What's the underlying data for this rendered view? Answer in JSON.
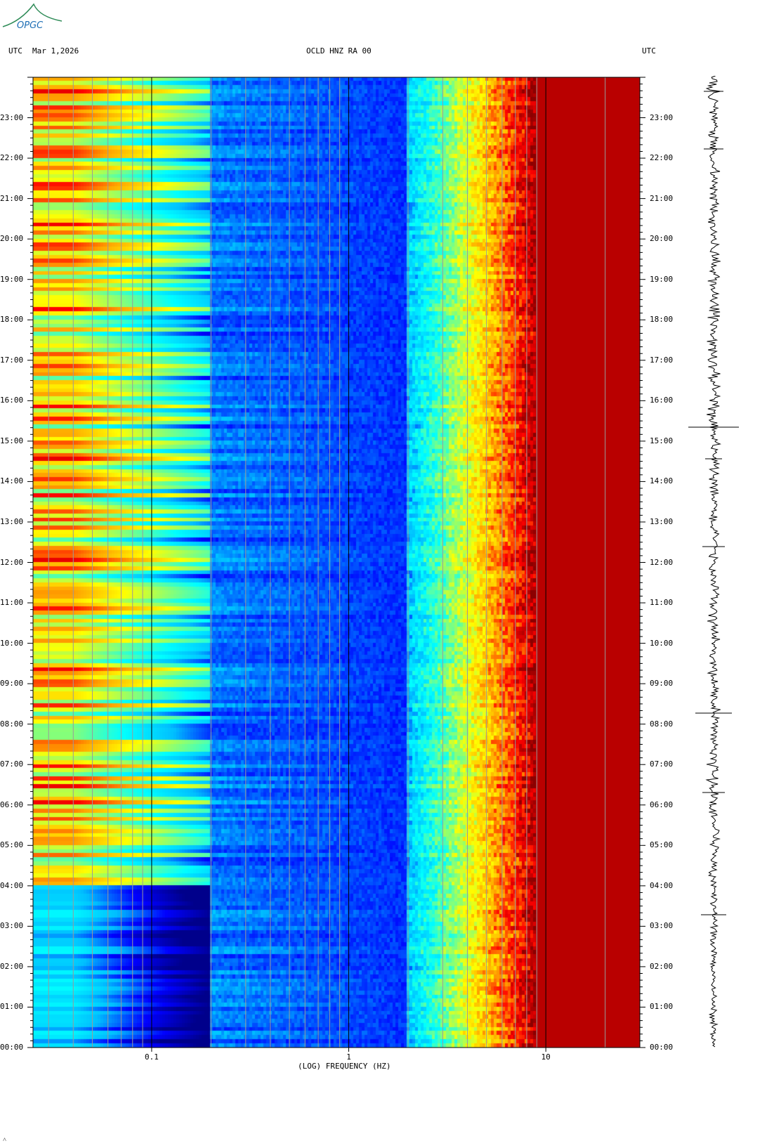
{
  "header": {
    "utc_left": "UTC",
    "date": "Mar 1,2026",
    "station": "OCLD HNZ RA 00",
    "utc_right": "UTC"
  },
  "logo": {
    "text": "OPGC",
    "icon": "opgc-logo"
  },
  "footer_mark": "˄",
  "colors": {
    "dark_blue": "#00008b",
    "blue": "#0000ff",
    "cyan": "#00ffff",
    "yellow": "#ffff00",
    "red": "#ff0000",
    "dark_red": "#8b0000"
  },
  "chart_data": {
    "type": "heatmap",
    "title": "OCLD HNZ RA 00",
    "xlabel": "(LOG) FREQUENCY (HZ)",
    "ylabel": "UTC",
    "x_scale": "log",
    "xlim": [
      0.025,
      30
    ],
    "x_ticks": [
      {
        "value": 0.1,
        "label": "0.1"
      },
      {
        "value": 1,
        "label": "1"
      },
      {
        "value": 10,
        "label": "10"
      }
    ],
    "ylim_hours": [
      0,
      24
    ],
    "y_ticks": [
      {
        "hour": 0,
        "label": "00:00"
      },
      {
        "hour": 1,
        "label": "01:00"
      },
      {
        "hour": 2,
        "label": "02:00"
      },
      {
        "hour": 3,
        "label": "03:00"
      },
      {
        "hour": 4,
        "label": "04:00"
      },
      {
        "hour": 5,
        "label": "05:00"
      },
      {
        "hour": 6,
        "label": "06:00"
      },
      {
        "hour": 7,
        "label": "07:00"
      },
      {
        "hour": 8,
        "label": "08:00"
      },
      {
        "hour": 9,
        "label": "09:00"
      },
      {
        "hour": 10,
        "label": "10:00"
      },
      {
        "hour": 11,
        "label": "11:00"
      },
      {
        "hour": 12,
        "label": "12:00"
      },
      {
        "hour": 13,
        "label": "13:00"
      },
      {
        "hour": 14,
        "label": "14:00"
      },
      {
        "hour": 15,
        "label": "15:00"
      },
      {
        "hour": 16,
        "label": "16:00"
      },
      {
        "hour": 17,
        "label": "17:00"
      },
      {
        "hour": 18,
        "label": "18:00"
      },
      {
        "hour": 19,
        "label": "19:00"
      },
      {
        "hour": 20,
        "label": "20:00"
      },
      {
        "hour": 21,
        "label": "21:00"
      },
      {
        "hour": 22,
        "label": "22:00"
      },
      {
        "hour": 23,
        "label": "23:00"
      }
    ],
    "colormap": [
      "#00008b",
      "#0000ff",
      "#00bfff",
      "#00ffff",
      "#7fff7f",
      "#ffff00",
      "#ffa500",
      "#ff0000",
      "#8b0000"
    ],
    "grid_lines_hz": [
      0.03,
      0.04,
      0.05,
      0.06,
      0.07,
      0.08,
      0.09,
      0.2,
      0.3,
      0.4,
      0.5,
      0.6,
      0.7,
      0.8,
      0.9,
      2,
      3,
      4,
      5,
      6,
      7,
      8,
      9,
      20
    ]
  }
}
